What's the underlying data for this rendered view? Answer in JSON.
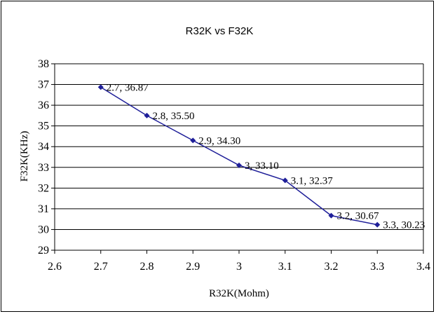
{
  "chart_data": {
    "type": "line",
    "title": "R32K vs F32K",
    "xlabel": "R32K(Mohm)",
    "ylabel": "F32K(KHz)",
    "xlim": [
      2.6,
      3.4
    ],
    "ylim": [
      29,
      38
    ],
    "x_ticks": [
      "2.6",
      "2.7",
      "2.8",
      "2.9",
      "3",
      "3.1",
      "3.2",
      "3.3",
      "3.4"
    ],
    "y_ticks": [
      "29",
      "30",
      "31",
      "32",
      "33",
      "34",
      "35",
      "36",
      "37",
      "38"
    ],
    "grid": "horizontal",
    "series": [
      {
        "color": "#1f1f99",
        "marker": "diamond",
        "x": [
          2.7,
          2.8,
          2.9,
          3.0,
          3.1,
          3.2,
          3.3
        ],
        "values": [
          36.87,
          35.5,
          34.3,
          33.1,
          32.37,
          30.67,
          30.23
        ],
        "point_labels": [
          "2.7, 36.87",
          "2.8, 35.50",
          "2.9, 34.30",
          "3, 33.10",
          "3.1, 32.37",
          "3.2, 30.67",
          "3.3, 30.23"
        ]
      }
    ]
  }
}
